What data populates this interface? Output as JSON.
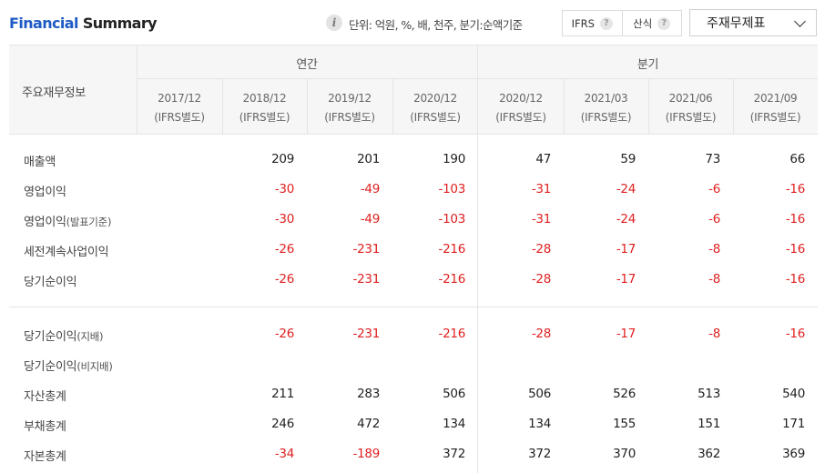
{
  "header": {
    "title_a": "Financial",
    "title_b": "Summary",
    "info_icon": "i",
    "unit_text": "단위: 억원, %, 배, 천주, 분기:순액기준",
    "toggle": [
      {
        "label": "IFRS",
        "help_icon": "?"
      },
      {
        "label": "산식",
        "help_icon": "?"
      }
    ],
    "select_value": "주재무제표"
  },
  "table": {
    "corner_label": "주요재무정보",
    "groups": [
      "연간",
      "분기"
    ],
    "periods": [
      {
        "date": "2017/12",
        "basis": "(IFRS별도)"
      },
      {
        "date": "2018/12",
        "basis": "(IFRS별도)"
      },
      {
        "date": "2019/12",
        "basis": "(IFRS별도)"
      },
      {
        "date": "2020/12",
        "basis": "(IFRS별도)"
      },
      {
        "date": "2020/12",
        "basis": "(IFRS별도)"
      },
      {
        "date": "2021/03",
        "basis": "(IFRS별도)"
      },
      {
        "date": "2021/06",
        "basis": "(IFRS별도)"
      },
      {
        "date": "2021/09",
        "basis": "(IFRS별도)"
      }
    ],
    "rows": [
      {
        "label": "매출액",
        "sub": "",
        "values": [
          "",
          "209",
          "201",
          "190",
          "47",
          "59",
          "73",
          "66"
        ]
      },
      {
        "label": "영업이익",
        "sub": "",
        "values": [
          "",
          "-30",
          "-49",
          "-103",
          "-31",
          "-24",
          "-6",
          "-16"
        ]
      },
      {
        "label": "영업이익",
        "sub": "(발표기준)",
        "values": [
          "",
          "-30",
          "-49",
          "-103",
          "-31",
          "-24",
          "-6",
          "-16"
        ]
      },
      {
        "label": "세전계속사업이익",
        "sub": "",
        "values": [
          "",
          "-26",
          "-231",
          "-216",
          "-28",
          "-17",
          "-8",
          "-16"
        ]
      },
      {
        "label": "당기순이익",
        "sub": "",
        "values": [
          "",
          "-26",
          "-231",
          "-216",
          "-28",
          "-17",
          "-8",
          "-16"
        ]
      },
      {
        "label": "당기순이익",
        "sub": "(지배)",
        "values": [
          "",
          "-26",
          "-231",
          "-216",
          "-28",
          "-17",
          "-8",
          "-16"
        ]
      },
      {
        "label": "당기순이익",
        "sub": "(비지배)",
        "values": [
          "",
          "",
          "",
          "",
          "",
          "",
          "",
          ""
        ]
      },
      {
        "label": "자산총계",
        "sub": "",
        "values": [
          "",
          "211",
          "283",
          "506",
          "506",
          "526",
          "513",
          "540"
        ]
      },
      {
        "label": "부채총계",
        "sub": "",
        "values": [
          "",
          "246",
          "472",
          "134",
          "134",
          "155",
          "151",
          "171"
        ]
      },
      {
        "label": "자본총계",
        "sub": "",
        "values": [
          "",
          "-34",
          "-189",
          "372",
          "372",
          "370",
          "362",
          "369"
        ]
      }
    ]
  },
  "colors": {
    "brand_blue": "#1f5bc5",
    "negative": "#e02020",
    "header_bg": "#f6f6f6",
    "border": "#e5e5e5"
  },
  "icons": [
    "info-icon",
    "help-icon",
    "chevron-down-icon"
  ]
}
